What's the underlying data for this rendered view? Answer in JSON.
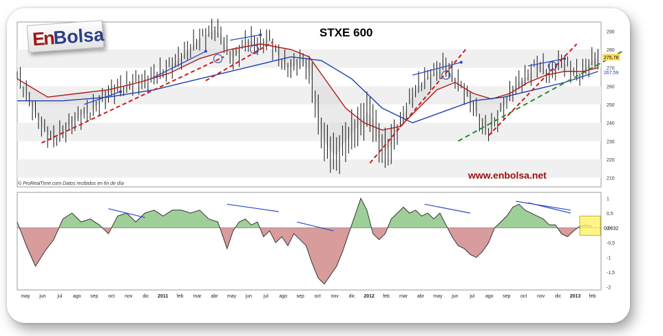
{
  "brand": {
    "logo_en": "En",
    "logo_bolsa": "Bolsa",
    "url": "www.enbolsa.net",
    "credit": "© ProRealTime.com  Datos recibidos en fin de día"
  },
  "chart_data": [
    {
      "type": "line",
      "title": "STXE 600",
      "x_labels": [
        "may",
        "jun",
        "jul",
        "ago",
        "sep",
        "oct",
        "nov",
        "dic",
        "2011",
        "feb",
        "mar",
        "abr",
        "may",
        "jun",
        "jul",
        "ago",
        "sep",
        "oct",
        "nov",
        "dic",
        "2012",
        "feb",
        "mar",
        "abr",
        "may",
        "jun",
        "jul",
        "ago",
        "sep",
        "oct",
        "nov",
        "dic",
        "2013",
        "feb"
      ],
      "y_ticks": [
        210,
        220,
        230,
        240,
        250,
        260,
        270,
        280,
        290
      ],
      "ylim": [
        205,
        295
      ],
      "price_series": [
        [
          0,
          266
        ],
        [
          3,
          256
        ],
        [
          6,
          245
        ],
        [
          9,
          236
        ],
        [
          12,
          231
        ],
        [
          15,
          235
        ],
        [
          18,
          240
        ],
        [
          21,
          244
        ],
        [
          24,
          246
        ],
        [
          27,
          251
        ],
        [
          30,
          256
        ],
        [
          33,
          259
        ],
        [
          36,
          260
        ],
        [
          39,
          263
        ],
        [
          42,
          262
        ],
        [
          45,
          266
        ],
        [
          48,
          268
        ],
        [
          51,
          272
        ],
        [
          54,
          276
        ],
        [
          57,
          281
        ],
        [
          60,
          286
        ],
        [
          63,
          289
        ],
        [
          65,
          291
        ],
        [
          67,
          288
        ],
        [
          69,
          280
        ],
        [
          71,
          275
        ],
        [
          73,
          279
        ],
        [
          75,
          284
        ],
        [
          77,
          285
        ],
        [
          79,
          283
        ],
        [
          81,
          284
        ],
        [
          83,
          286
        ],
        [
          85,
          279
        ],
        [
          87,
          274
        ],
        [
          89,
          270
        ],
        [
          91,
          271
        ],
        [
          93,
          274
        ],
        [
          95,
          272
        ],
        [
          97,
          262
        ],
        [
          99,
          242
        ],
        [
          101,
          230
        ],
        [
          103,
          225
        ],
        [
          105,
          222
        ],
        [
          107,
          228
        ],
        [
          109,
          232
        ],
        [
          111,
          236
        ],
        [
          113,
          240
        ],
        [
          115,
          246
        ],
        [
          117,
          242
        ],
        [
          119,
          230
        ],
        [
          121,
          224
        ],
        [
          123,
          228
        ],
        [
          125,
          236
        ],
        [
          127,
          244
        ],
        [
          129,
          252
        ],
        [
          131,
          258
        ],
        [
          133,
          262
        ],
        [
          135,
          265
        ],
        [
          137,
          267
        ],
        [
          139,
          270
        ],
        [
          141,
          272
        ],
        [
          143,
          266
        ],
        [
          145,
          262
        ],
        [
          147,
          258
        ],
        [
          149,
          252
        ],
        [
          151,
          246
        ],
        [
          153,
          238
        ],
        [
          155,
          236
        ],
        [
          157,
          240
        ],
        [
          159,
          246
        ],
        [
          161,
          252
        ],
        [
          163,
          258
        ],
        [
          165,
          262
        ],
        [
          167,
          264
        ],
        [
          169,
          268
        ],
        [
          171,
          272
        ],
        [
          173,
          270
        ],
        [
          175,
          266
        ],
        [
          177,
          270
        ],
        [
          179,
          274
        ],
        [
          181,
          271
        ],
        [
          183,
          268
        ],
        [
          185,
          266
        ],
        [
          187,
          270
        ],
        [
          189,
          274
        ],
        [
          191,
          276
        ]
      ],
      "ma_red": [
        [
          0,
          264
        ],
        [
          10,
          254
        ],
        [
          20,
          256
        ],
        [
          30,
          258
        ],
        [
          40,
          262
        ],
        [
          50,
          267
        ],
        [
          60,
          275
        ],
        [
          70,
          280
        ],
        [
          80,
          283
        ],
        [
          90,
          280
        ],
        [
          96,
          276
        ],
        [
          102,
          262
        ],
        [
          108,
          248
        ],
        [
          114,
          240
        ],
        [
          120,
          236
        ],
        [
          126,
          238
        ],
        [
          132,
          248
        ],
        [
          138,
          258
        ],
        [
          144,
          262
        ],
        [
          150,
          256
        ],
        [
          156,
          253
        ],
        [
          162,
          256
        ],
        [
          168,
          262
        ],
        [
          174,
          266
        ],
        [
          180,
          268
        ],
        [
          186,
          268
        ],
        [
          191,
          270
        ]
      ],
      "ma_blue": [
        [
          0,
          252
        ],
        [
          15,
          252
        ],
        [
          30,
          254
        ],
        [
          45,
          258
        ],
        [
          60,
          264
        ],
        [
          75,
          270
        ],
        [
          90,
          276
        ],
        [
          100,
          274
        ],
        [
          110,
          264
        ],
        [
          120,
          248
        ],
        [
          130,
          240
        ],
        [
          140,
          246
        ],
        [
          150,
          252
        ],
        [
          160,
          254
        ],
        [
          170,
          258
        ],
        [
          180,
          262
        ],
        [
          191,
          268
        ]
      ],
      "price_label": "275,78",
      "ma_label": "267,59",
      "annotation_colors": {
        "trend_up": "#2a48c8",
        "support_red": "#cc1a1a",
        "support_green": "#2a8a2a"
      }
    },
    {
      "type": "area",
      "title": "",
      "y_ticks_labels": [
        "1",
        "0,5",
        "0",
        "-0,5",
        "-1",
        "-1,5",
        "-2"
      ],
      "y_ticks": [
        1,
        0.5,
        0,
        -0.5,
        -1,
        -1.5,
        -2
      ],
      "ylim": [
        -2.1,
        1.2
      ],
      "oscillator_label": "0,0632",
      "oscillator_series": [
        [
          0,
          0.2
        ],
        [
          3,
          -0.6
        ],
        [
          6,
          -1.3
        ],
        [
          9,
          -0.8
        ],
        [
          12,
          -0.4
        ],
        [
          15,
          0.3
        ],
        [
          18,
          0.5
        ],
        [
          21,
          0.2
        ],
        [
          24,
          0.3
        ],
        [
          27,
          0.1
        ],
        [
          30,
          -0.2
        ],
        [
          33,
          0.4
        ],
        [
          36,
          0.5
        ],
        [
          39,
          0.2
        ],
        [
          42,
          0.5
        ],
        [
          45,
          0.6
        ],
        [
          48,
          0.4
        ],
        [
          51,
          0.6
        ],
        [
          54,
          0.6
        ],
        [
          57,
          0.5
        ],
        [
          60,
          0.6
        ],
        [
          63,
          0.3
        ],
        [
          66,
          0.2
        ],
        [
          69,
          -0.7
        ],
        [
          71,
          -0.1
        ],
        [
          73,
          0.2
        ],
        [
          75,
          0.3
        ],
        [
          77,
          0.1
        ],
        [
          79,
          0.2
        ],
        [
          81,
          -0.3
        ],
        [
          83,
          -0.1
        ],
        [
          85,
          -0.5
        ],
        [
          87,
          -0.3
        ],
        [
          89,
          -0.6
        ],
        [
          91,
          -0.2
        ],
        [
          93,
          -0.4
        ],
        [
          95,
          -0.6
        ],
        [
          97,
          -1.2
        ],
        [
          99,
          -1.7
        ],
        [
          101,
          -1.9
        ],
        [
          103,
          -1.6
        ],
        [
          105,
          -1.3
        ],
        [
          107,
          -0.8
        ],
        [
          109,
          -0.2
        ],
        [
          111,
          0.4
        ],
        [
          113,
          1.0
        ],
        [
          115,
          0.6
        ],
        [
          117,
          -0.2
        ],
        [
          119,
          -0.4
        ],
        [
          121,
          -0.2
        ],
        [
          123,
          0.3
        ],
        [
          125,
          0.5
        ],
        [
          127,
          0.7
        ],
        [
          129,
          0.5
        ],
        [
          131,
          0.6
        ],
        [
          133,
          0.4
        ],
        [
          135,
          0.5
        ],
        [
          137,
          0.3
        ],
        [
          139,
          0.5
        ],
        [
          141,
          0.1
        ],
        [
          143,
          -0.3
        ],
        [
          145,
          -0.6
        ],
        [
          147,
          -0.7
        ],
        [
          149,
          -0.9
        ],
        [
          151,
          -1.0
        ],
        [
          153,
          -0.8
        ],
        [
          155,
          -0.5
        ],
        [
          157,
          0.0
        ],
        [
          159,
          0.2
        ],
        [
          161,
          0.4
        ],
        [
          163,
          0.7
        ],
        [
          165,
          0.8
        ],
        [
          167,
          0.6
        ],
        [
          169,
          0.5
        ],
        [
          171,
          0.4
        ],
        [
          173,
          0.3
        ],
        [
          175,
          0.1
        ],
        [
          177,
          0.1
        ],
        [
          179,
          -0.2
        ],
        [
          181,
          -0.3
        ],
        [
          183,
          -0.1
        ],
        [
          185,
          0.05
        ],
        [
          187,
          0.1
        ],
        [
          189,
          0.06
        ]
      ]
    }
  ]
}
